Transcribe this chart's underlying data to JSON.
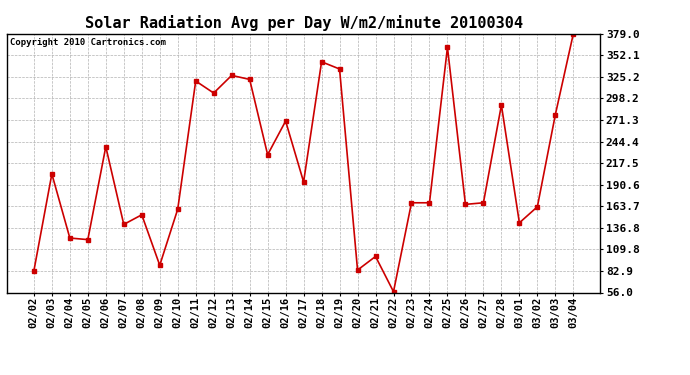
{
  "title": "Solar Radiation Avg per Day W/m2/minute 20100304",
  "copyright": "Copyright 2010 Cartronics.com",
  "dates": [
    "02/02",
    "02/03",
    "02/04",
    "02/05",
    "02/06",
    "02/07",
    "02/08",
    "02/09",
    "02/10",
    "02/11",
    "02/12",
    "02/13",
    "02/14",
    "02/15",
    "02/16",
    "02/17",
    "02/18",
    "02/19",
    "02/20",
    "02/21",
    "02/22",
    "02/23",
    "02/24",
    "02/25",
    "02/26",
    "02/27",
    "02/28",
    "03/01",
    "03/02",
    "03/03",
    "03/04"
  ],
  "values": [
    83,
    204,
    124,
    122,
    238,
    141,
    153,
    90,
    160,
    320,
    305,
    327,
    322,
    228,
    270,
    194,
    344,
    335,
    84,
    101,
    57,
    168,
    168,
    362,
    166,
    168,
    290,
    143,
    163,
    278,
    379
  ],
  "ylim": [
    56.0,
    379.0
  ],
  "yticks": [
    56.0,
    82.9,
    109.8,
    136.8,
    163.7,
    190.6,
    217.5,
    244.4,
    271.3,
    298.2,
    325.2,
    352.1,
    379.0
  ],
  "ytick_labels": [
    "56.0",
    "82.9",
    "109.8",
    "136.8",
    "163.7",
    "190.6",
    "217.5",
    "244.4",
    "271.3",
    "298.2",
    "325.2",
    "352.1",
    "379.0"
  ],
  "line_color": "#cc0000",
  "marker": "s",
  "marker_size": 2.5,
  "bg_color": "#ffffff",
  "grid_color": "#aaaaaa",
  "title_fontsize": 11,
  "tick_fontsize": 7.5,
  "ytick_fontsize": 8,
  "copyright_fontsize": 6.5
}
